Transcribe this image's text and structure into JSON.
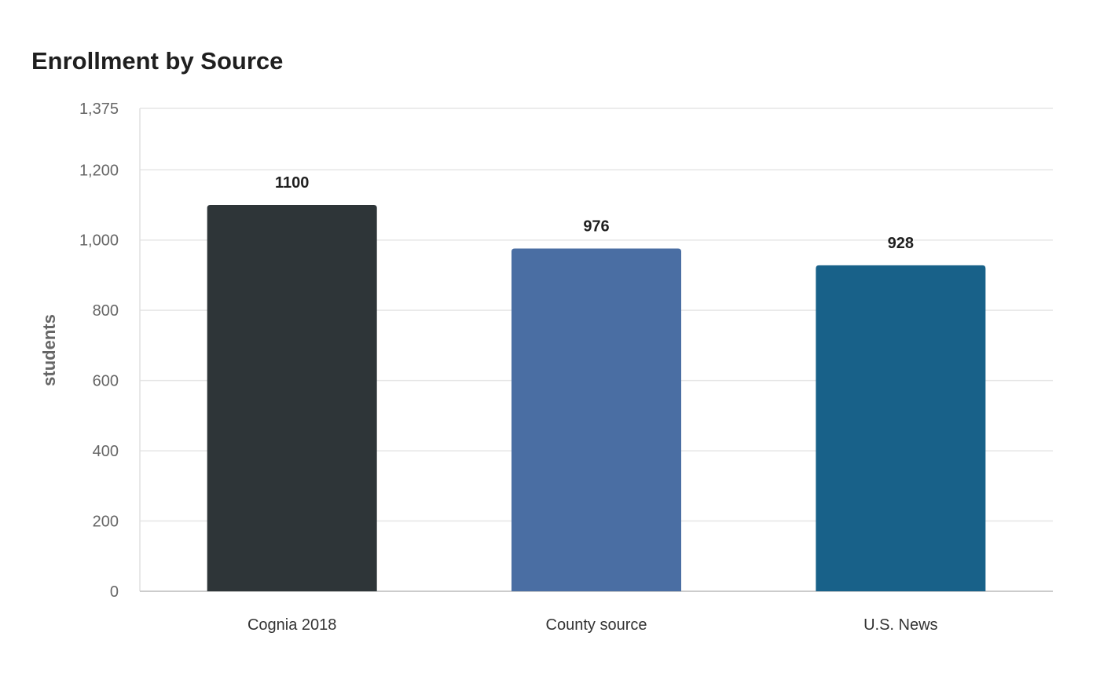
{
  "chart_data": {
    "type": "bar",
    "title": "Enrollment by Source",
    "xlabel": "",
    "ylabel": "students",
    "categories": [
      "Cognia 2018",
      "County source",
      "U.S. News"
    ],
    "values": [
      1100,
      976,
      928
    ],
    "data_labels": [
      "1100",
      "976",
      "928"
    ],
    "colors": [
      "#2e3538",
      "#4a6ea3",
      "#186189"
    ],
    "ylim": [
      0,
      1375
    ],
    "yticks": [
      0,
      200,
      400,
      600,
      800,
      1000,
      1200,
      1375
    ],
    "ytick_labels": [
      "0",
      "200",
      "400",
      "600",
      "800",
      "1,000",
      "1,200",
      "1,375"
    ],
    "grid": true,
    "legend": "none"
  }
}
